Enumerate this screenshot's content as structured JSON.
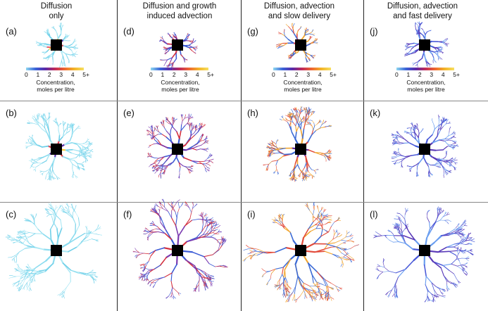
{
  "columns": [
    {
      "header": "Diffusion\nonly",
      "colors": [
        "#aee9f5",
        "#8cdcef",
        "#6fcfe8"
      ],
      "core": [
        "#ffcc33",
        "#e23a4a",
        "#5a2aa8"
      ]
    },
    {
      "header": "Diffusion and growth\ninduced advection",
      "colors": [
        "#3b5bd6",
        "#7b3bb0",
        "#d4303e"
      ],
      "core": [
        "#e23a4a",
        "#5a2aa8",
        "#3b5bd6"
      ]
    },
    {
      "header": "Diffusion, advection\nand slow delivery",
      "colors": [
        "#3b6ad6",
        "#e24a3a",
        "#f1a630"
      ],
      "core": [
        "#f1a630",
        "#e23a4a",
        "#5a2aa8"
      ]
    },
    {
      "header": "Diffusion, advection\nand fast delivery",
      "colors": [
        "#6a9ef0",
        "#4a5ad8",
        "#5a3ab8"
      ],
      "core": [
        "#3b5bd6",
        "#5a2aa8",
        "#3b5bd6"
      ]
    }
  ],
  "panels": [
    "(a)",
    "(b)",
    "(c)",
    "(d)",
    "(e)",
    "(f)",
    "(g)",
    "(h)",
    "(i)",
    "(j)",
    "(k)",
    "(l)"
  ],
  "scale": {
    "ticks": [
      "0",
      "1",
      "2",
      "3",
      "4",
      "5+"
    ],
    "label": "Concentration,\nmoles per litre",
    "colors": [
      "#8fd8f0",
      "#3a63d8",
      "#5a2aa8",
      "#c02a5a",
      "#ee6630",
      "#f3b428",
      "#f6df60"
    ]
  }
}
